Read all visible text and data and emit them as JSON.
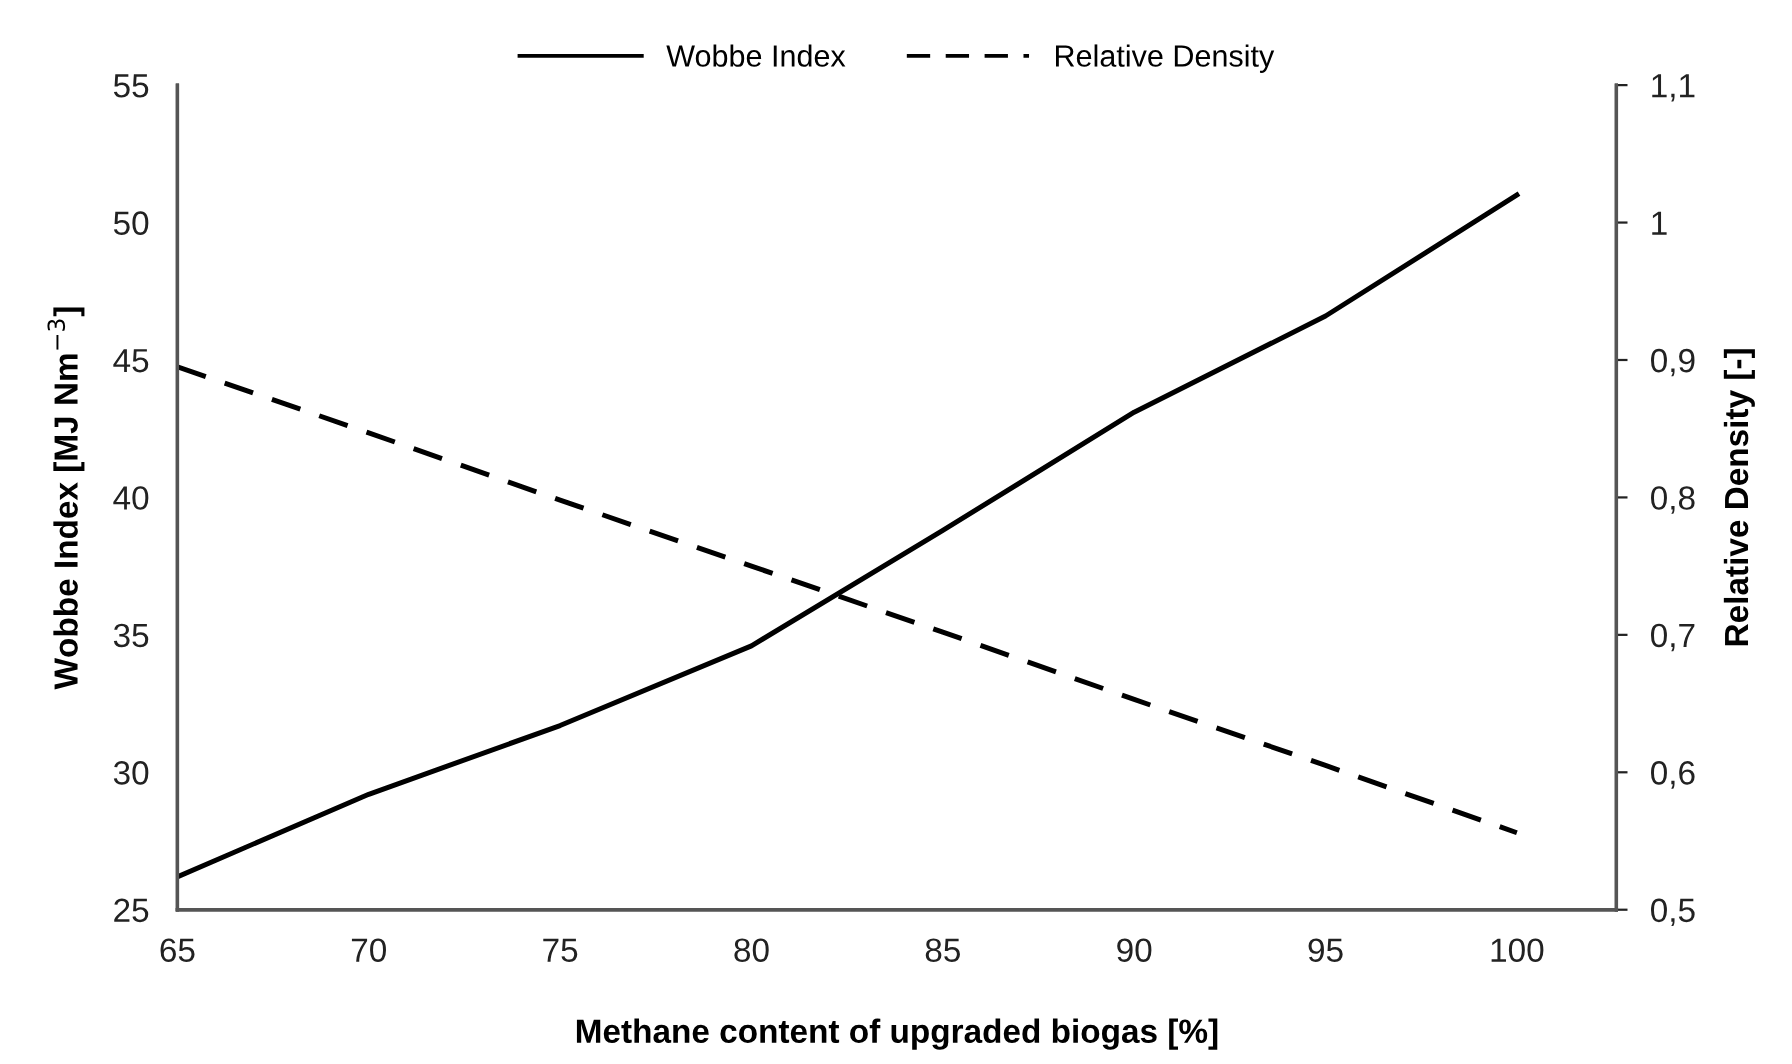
{
  "chart_data": {
    "type": "line",
    "xlabel": "Methane content of upgraded biogas [%]",
    "ylabel": "Wobbe Index [MJ Nm$^{−3}$]",
    "y2label": "Relative Density [-]",
    "x": [
      65,
      70,
      75,
      80,
      85,
      90,
      95,
      100
    ],
    "series": [
      {
        "name": "Wobbe Index",
        "color": "#000000",
        "line_style": "solid",
        "values": [
          26.2,
          29.2,
          31.7,
          34.6,
          38.8,
          43.1,
          46.6,
          51.0
        ]
      },
      {
        "name": "Relative Density",
        "color": "#000000",
        "line_style": "dashed",
        "axis": "y2",
        "values": [
          0.895,
          0.847,
          0.798,
          0.75,
          0.702,
          0.653,
          0.605,
          0.556
        ]
      }
    ],
    "xlim": [
      65,
      102.6
    ],
    "xticks": [
      65,
      70,
      75,
      80,
      85,
      90,
      95,
      100
    ],
    "ylim": [
      25,
      55
    ],
    "yticks": [
      25,
      30,
      35,
      40,
      45,
      50,
      55
    ],
    "y2lim": [
      0.5,
      1.1
    ],
    "y2ticks": [
      {
        "value": 0.5,
        "label": "0,5"
      },
      {
        "value": 0.6,
        "label": "0,6"
      },
      {
        "value": 0.7,
        "label": "0,7"
      },
      {
        "value": 0.8,
        "label": "0,8"
      },
      {
        "value": 0.9,
        "label": "0,9"
      },
      {
        "value": 1,
        "label": "1"
      },
      {
        "value": 1.1,
        "label": "1,1"
      }
    ],
    "legend": "top",
    "grid": false,
    "marker": "none"
  }
}
